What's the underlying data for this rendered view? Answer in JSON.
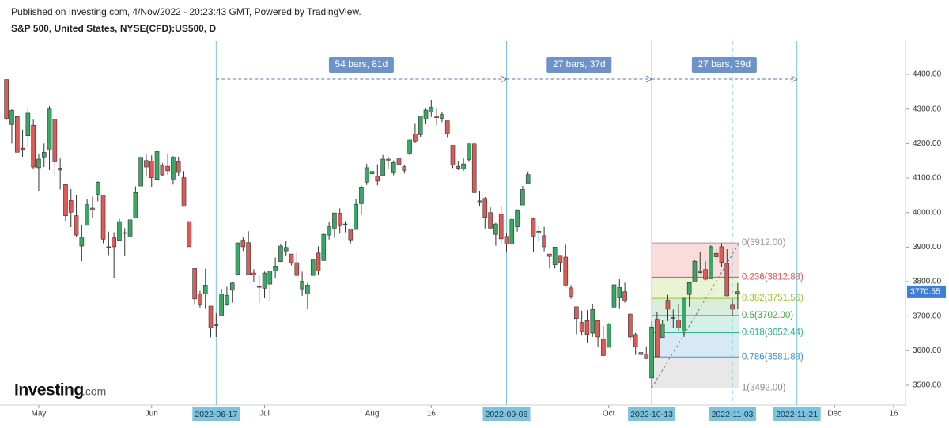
{
  "header": {
    "published": "Published on Investing.com, 4/Nov/2022 - 20:23:43 GMT, Powered by TradingView.",
    "symbol": "S&P 500, United States, NYSE(CFD):US500, D",
    "logo": "Investing",
    "logo_suffix": ".com"
  },
  "chart_data": {
    "type": "candlestick",
    "up_color": "#3aa864",
    "down_color": "#dd5a55",
    "open": [
      4385,
      4255,
      4278,
      4187,
      4222,
      4253,
      4130,
      4159,
      4181,
      4270,
      4129,
      4081,
      4035,
      3991,
      3903,
      3963,
      4013,
      4052,
      4051,
      3900,
      3927,
      3920,
      3942,
      3929,
      3985,
      4077,
      4151,
      4149,
      4096,
      4137,
      4134,
      4097,
      4147,
      4101,
      3974,
      3838,
      3764,
      3765,
      3729,
      3675,
      3701,
      3734,
      3775,
      3821,
      3920,
      3913,
      3825,
      3786,
      3781,
      3793,
      3831,
      3858,
      3889,
      3880,
      3855,
      3779,
      3764,
      3818,
      3883,
      3861,
      3935,
      3955,
      3998,
      3965,
      3953,
      3951,
      4026,
      4088,
      4112,
      4105,
      4107,
      4155,
      4115,
      4156,
      4133,
      4170,
      4227,
      4225,
      4270,
      4291,
      4280,
      4273,
      4266,
      4195,
      4134,
      4126,
      4153,
      4199,
      4034,
      4041,
      4000,
      3937,
      3995,
      3931,
      3909,
      3959,
      4022,
      4084,
      3982,
      3941,
      3933,
      3880,
      3849,
      3876,
      3871,
      3782,
      3727,
      3682,
      3687,
      3651,
      3687,
      3633,
      3610,
      3726,
      3753,
      3771,
      3706,
      3647,
      3595,
      3590,
      3521,
      3691,
      3638,
      3746,
      3696,
      3689,
      3657,
      3763,
      3799,
      3826,
      3835,
      3808,
      3882,
      3901,
      3853,
      3734,
      3766
    ],
    "high": [
      4385,
      4299,
      4278,
      4240,
      4308,
      4269,
      4169,
      4200,
      4308,
      4270,
      4157,
      4082,
      4068,
      4050,
      3964,
      4038,
      4046,
      4090,
      4051,
      3945,
      3943,
      3982,
      3955,
      3999,
      4076,
      4158,
      4168,
      4166,
      4177,
      4143,
      4169,
      4164,
      4160,
      4120,
      3974,
      3838,
      3773,
      3837,
      3729,
      3708,
      3779,
      3785,
      3800,
      3913,
      3928,
      3946,
      3836,
      3818,
      3829,
      3833,
      3870,
      3910,
      3918,
      3880,
      3884,
      3829,
      3796,
      3863,
      3902,
      3939,
      3974,
      3999,
      4012,
      3975,
      3953,
      4040,
      4078,
      4141,
      4144,
      4140,
      4167,
      4162,
      4151,
      4187,
      4137,
      4211,
      4257,
      4280,
      4301,
      4326,
      4302,
      4292,
      4266,
      4195,
      4149,
      4157,
      4200,
      4203,
      4063,
      4045,
      4015,
      3970,
      4019,
      3942,
      3987,
      4010,
      4077,
      4119,
      3986,
      3961,
      3959,
      3880,
      3900,
      3876,
      3907,
      3790,
      3727,
      3716,
      3717,
      3736,
      3687,
      3671,
      3680,
      3791,
      3807,
      3797,
      3707,
      3652,
      3641,
      3613,
      3685,
      3713,
      3689,
      3762,
      3719,
      3736,
      3752,
      3799,
      3862,
      3887,
      3859,
      3905,
      3893,
      3911,
      3894,
      3750,
      3796
    ],
    "low": [
      4268,
      4200,
      4175,
      4162,
      4188,
      4125,
      4062,
      4132,
      4123,
      4106,
      4067,
      3976,
      3958,
      3928,
      3859,
      3963,
      3983,
      4033,
      3911,
      3877,
      3810,
      3919,
      3875,
      3926,
      3984,
      4077,
      4104,
      4074,
      4074,
      4107,
      4109,
      4081,
      4107,
      4017,
      3901,
      3735,
      3725,
      3723,
      3639,
      3640,
      3701,
      3730,
      3739,
      3821,
      3889,
      3820,
      3800,
      3738,
      3752,
      3743,
      3809,
      3858,
      3876,
      3847,
      3814,
      3759,
      3722,
      3817,
      3819,
      3861,
      3922,
      3927,
      3939,
      3943,
      3911,
      3951,
      3993,
      4080,
      4097,
      4079,
      4107,
      4128,
      4108,
      4128,
      4113,
      4165,
      4201,
      4219,
      4256,
      4277,
      4253,
      4262,
      4218,
      4129,
      4123,
      4121,
      4147,
      4057,
      4018,
      3954,
      3954,
      3904,
      3907,
      3886,
      3906,
      3945,
      4022,
      4084,
      3886,
      3915,
      3888,
      3838,
      3838,
      3828,
      3789,
      3750,
      3648,
      3644,
      3624,
      3640,
      3610,
      3584,
      3610,
      3726,
      3723,
      3739,
      3632,
      3588,
      3569,
      3580,
      3492,
      3584,
      3638,
      3686,
      3666,
      3656,
      3640,
      3727,
      3799,
      3824,
      3803,
      3808,
      3863,
      3843,
      3758,
      3699,
      3721
    ],
    "close": [
      4272,
      4296,
      4175,
      4183,
      4288,
      4132,
      4155,
      4175,
      4300,
      4147,
      4123,
      3991,
      4001,
      3935,
      3930,
      4023,
      4008,
      4088,
      3923,
      3901,
      3901,
      3974,
      3941,
      3979,
      4058,
      4158,
      4132,
      4101,
      4177,
      4109,
      4121,
      4161,
      4116,
      4018,
      3901,
      3750,
      3735,
      3790,
      3667,
      3675,
      3765,
      3760,
      3796,
      3912,
      3901,
      3821,
      3819,
      3785,
      3825,
      3831,
      3845,
      3903,
      3899,
      3855,
      3818,
      3801,
      3790,
      3863,
      3831,
      3937,
      3959,
      3999,
      3962,
      3967,
      3921,
      4024,
      4072,
      4130,
      4119,
      4091,
      4155,
      4152,
      4145,
      4140,
      4122,
      4210,
      4207,
      4280,
      4297,
      4305,
      4275,
      4284,
      4228,
      4138,
      4128,
      4141,
      4199,
      4058,
      4031,
      3986,
      3955,
      3967,
      3924,
      3909,
      3980,
      4006,
      4067,
      4110,
      3932,
      3946,
      3901,
      3873,
      3900,
      3856,
      3790,
      3758,
      3693,
      3655,
      3647,
      3719,
      3640,
      3586,
      3678,
      3791,
      3783,
      3745,
      3640,
      3612,
      3589,
      3577,
      3669,
      3583,
      3677,
      3720,
      3695,
      3666,
      3752,
      3797,
      3859,
      3830,
      3807,
      3901,
      3872,
      3856,
      3759,
      3720,
      3771
    ],
    "xlim": [
      -1.2,
      167.2
    ],
    "xticks": [
      {
        "value": 6,
        "label": "May"
      },
      {
        "value": 27,
        "label": "Jun"
      },
      {
        "value": 48,
        "label": "Jul"
      },
      {
        "value": 68,
        "label": "Aug"
      },
      {
        "value": 79,
        "label": "16"
      },
      {
        "value": 112,
        "label": "Oct"
      },
      {
        "value": 154,
        "label": "Dec"
      },
      {
        "value": 165,
        "label": "16"
      }
    ],
    "ylim": [
      3442.8,
      4500.8
    ],
    "yticks": [
      {
        "value": 3500,
        "label": "3500.00"
      },
      {
        "value": 3600,
        "label": "3600.00"
      },
      {
        "value": 3700,
        "label": "3700.00"
      },
      {
        "value": 3800,
        "label": "3800.00"
      },
      {
        "value": 3900,
        "label": "3900.00"
      },
      {
        "value": 4000,
        "label": "4000.00"
      },
      {
        "value": 4100,
        "label": "4100.00"
      },
      {
        "value": 4200,
        "label": "4200.00"
      },
      {
        "value": 4300,
        "label": "4300.00"
      },
      {
        "value": 4400,
        "label": "4400.00"
      }
    ],
    "markers": [
      {
        "value": 39,
        "label": "2022-06-17"
      },
      {
        "value": 93,
        "label": "2022-09-06"
      },
      {
        "value": 120,
        "label": "2022-10-13"
      },
      {
        "value": 135,
        "label": "2022-11-03",
        "dashed": true
      },
      {
        "value": 147,
        "label": "2022-11-21"
      }
    ],
    "ranges": [
      {
        "from": 39,
        "to": 93,
        "label": "54 bars, 81d"
      },
      {
        "from": 93,
        "to": 120,
        "label": "27 bars, 37d"
      },
      {
        "from": 120,
        "to": 147,
        "label": "27 bars, 39d"
      }
    ],
    "fib": {
      "from": 120,
      "to": 136,
      "levels": [
        {
          "value": 3912,
          "label": "0(3912.00)",
          "color": "#9a9a9a"
        },
        {
          "value": 3812.88,
          "label": "0.236(3812.88)",
          "color": "#e05050"
        },
        {
          "value": 3751.56,
          "label": "0.382(3751.56)",
          "color": "#9cc22c"
        },
        {
          "value": 3702,
          "label": "0.5(3702.00)",
          "color": "#3aa848"
        },
        {
          "value": 3652.44,
          "label": "0.618(3652.44)",
          "color": "#2bb58a"
        },
        {
          "value": 3581.88,
          "label": "0.786(3581.88)",
          "color": "#3b8fd0"
        },
        {
          "value": 3492,
          "label": "1(3492.00)",
          "color": "#8a8a8a"
        }
      ]
    },
    "last_price": 3770.55,
    "last_color": "#3d7fd6"
  }
}
